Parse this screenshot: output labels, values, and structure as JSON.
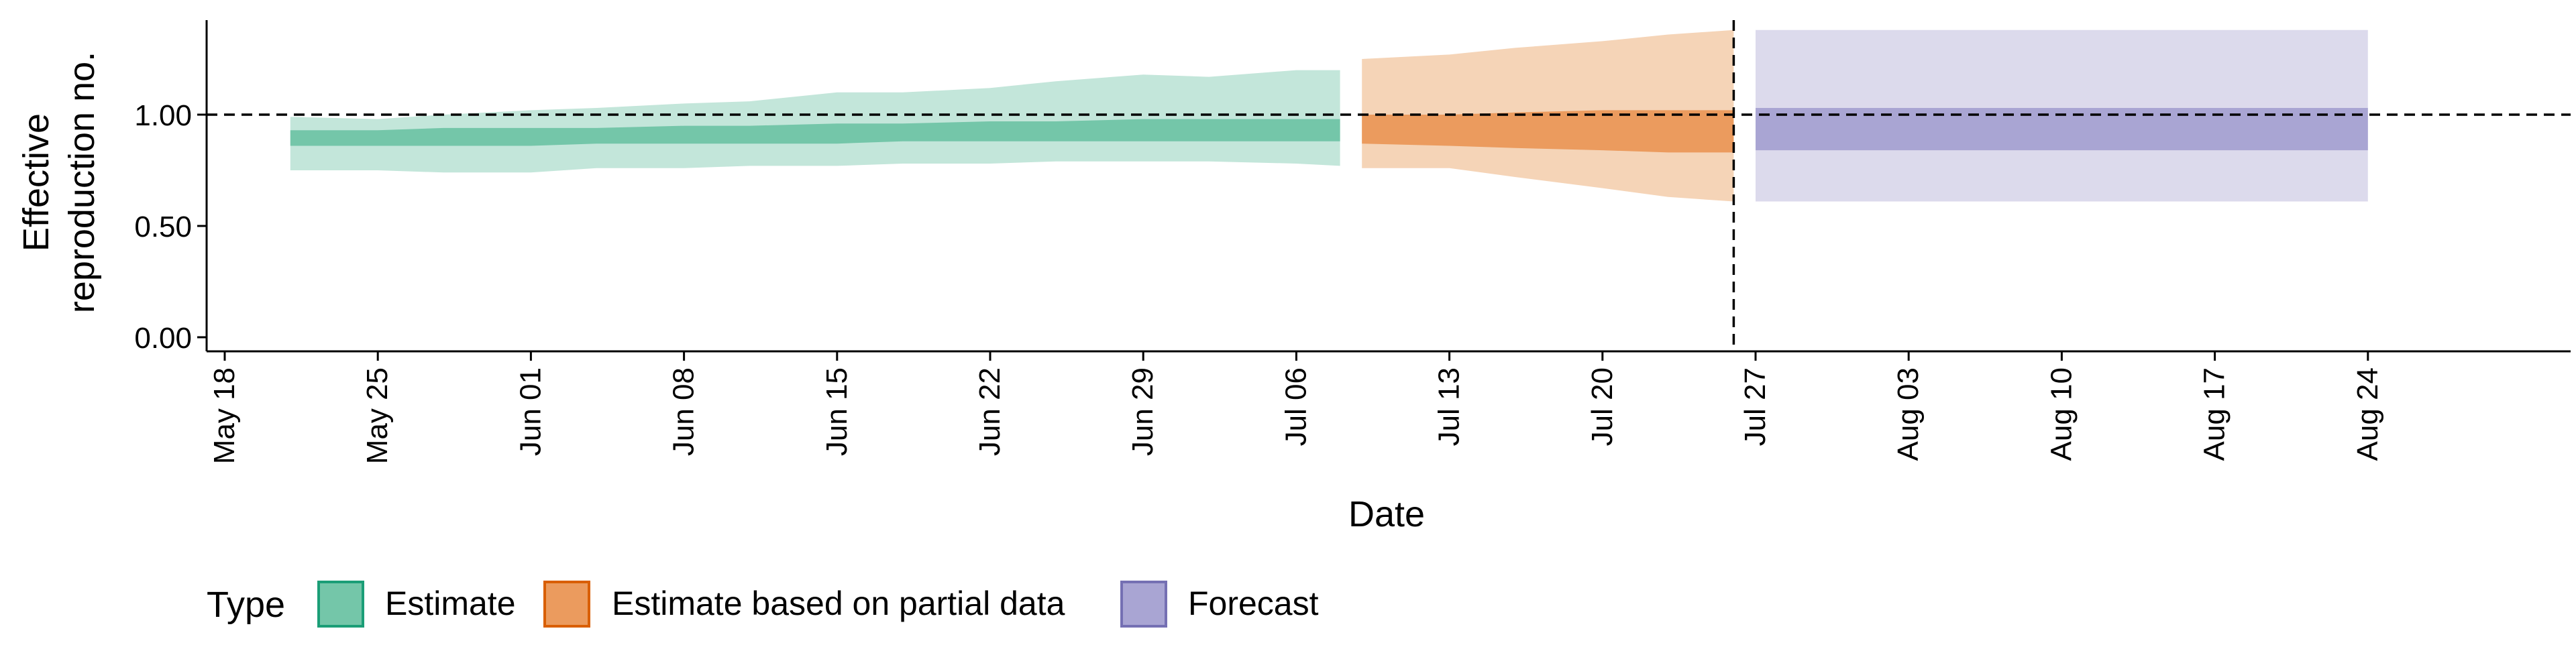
{
  "chart_data": {
    "type": "area",
    "xlabel": "Date",
    "ylabel": [
      "Effective",
      "reproduction no."
    ],
    "ylim": [
      0,
      1.45
    ],
    "yticks": [
      0.0,
      0.5,
      1.0
    ],
    "ytick_labels": [
      "0.00",
      "0.50",
      "1.00"
    ],
    "xticks": [
      "2020-05-18",
      "2020-05-25",
      "2020-06-01",
      "2020-06-08",
      "2020-06-15",
      "2020-06-22",
      "2020-06-29",
      "2020-07-06",
      "2020-07-13",
      "2020-07-20",
      "2020-07-27",
      "2020-08-03",
      "2020-08-10",
      "2020-08-17",
      "2020-08-24"
    ],
    "xtick_labels": [
      "May 18",
      "May 25",
      "Jun 01",
      "Jun 08",
      "Jun 15",
      "Jun 22",
      "Jun 29",
      "Jul 06",
      "Jul 13",
      "Jul 20",
      "Jul 27",
      "Aug 03",
      "Aug 10",
      "Aug 17",
      "Aug 24"
    ],
    "reference_hline": 1.0,
    "reference_vline": "2020-07-26",
    "legend": {
      "title": "Type",
      "position": "bottom",
      "entries": [
        {
          "label": "Estimate",
          "fill": "#74c6a9",
          "border": "#1b9e77"
        },
        {
          "label": "Estimate based on partial data",
          "fill": "#eb9b5e",
          "border": "#d95f02"
        },
        {
          "label": "Forecast",
          "fill": "#a9a5d3",
          "border": "#7570b3"
        }
      ]
    },
    "series": [
      {
        "name": "Estimate",
        "outer_color": "#c3e6da",
        "inner_color": "#74c6a9",
        "points": [
          {
            "date": "2020-05-21",
            "lower_90": 0.75,
            "lower_50": 0.86,
            "upper_50": 0.93,
            "upper_90": 0.99
          },
          {
            "date": "2020-05-25",
            "lower_90": 0.75,
            "lower_50": 0.86,
            "upper_50": 0.93,
            "upper_90": 0.98
          },
          {
            "date": "2020-05-28",
            "lower_90": 0.74,
            "lower_50": 0.86,
            "upper_50": 0.94,
            "upper_90": 1.0
          },
          {
            "date": "2020-06-01",
            "lower_90": 0.74,
            "lower_50": 0.86,
            "upper_50": 0.94,
            "upper_90": 1.02
          },
          {
            "date": "2020-06-04",
            "lower_90": 0.76,
            "lower_50": 0.87,
            "upper_50": 0.94,
            "upper_90": 1.03
          },
          {
            "date": "2020-06-08",
            "lower_90": 0.76,
            "lower_50": 0.87,
            "upper_50": 0.95,
            "upper_90": 1.05
          },
          {
            "date": "2020-06-11",
            "lower_90": 0.77,
            "lower_50": 0.87,
            "upper_50": 0.95,
            "upper_90": 1.06
          },
          {
            "date": "2020-06-15",
            "lower_90": 0.77,
            "lower_50": 0.87,
            "upper_50": 0.96,
            "upper_90": 1.1
          },
          {
            "date": "2020-06-18",
            "lower_90": 0.78,
            "lower_50": 0.88,
            "upper_50": 0.96,
            "upper_90": 1.1
          },
          {
            "date": "2020-06-22",
            "lower_90": 0.78,
            "lower_50": 0.88,
            "upper_50": 0.97,
            "upper_90": 1.12
          },
          {
            "date": "2020-06-25",
            "lower_90": 0.79,
            "lower_50": 0.88,
            "upper_50": 0.97,
            "upper_90": 1.15
          },
          {
            "date": "2020-06-29",
            "lower_90": 0.79,
            "lower_50": 0.88,
            "upper_50": 0.98,
            "upper_90": 1.18
          },
          {
            "date": "2020-07-02",
            "lower_90": 0.79,
            "lower_50": 0.88,
            "upper_50": 0.98,
            "upper_90": 1.17
          },
          {
            "date": "2020-07-06",
            "lower_90": 0.78,
            "lower_50": 0.88,
            "upper_50": 0.98,
            "upper_90": 1.2
          },
          {
            "date": "2020-07-08",
            "lower_90": 0.77,
            "lower_50": 0.88,
            "upper_50": 0.98,
            "upper_90": 1.2
          }
        ]
      },
      {
        "name": "Estimate based on partial data",
        "outer_color": "#f5d4b7",
        "inner_color": "#eb9b5e",
        "points": [
          {
            "date": "2020-07-09",
            "lower_90": 0.76,
            "lower_50": 0.87,
            "upper_50": 1.0,
            "upper_90": 1.25
          },
          {
            "date": "2020-07-13",
            "lower_90": 0.76,
            "lower_50": 0.86,
            "upper_50": 1.0,
            "upper_90": 1.27
          },
          {
            "date": "2020-07-16",
            "lower_90": 0.72,
            "lower_50": 0.85,
            "upper_50": 1.01,
            "upper_90": 1.3
          },
          {
            "date": "2020-07-20",
            "lower_90": 0.67,
            "lower_50": 0.84,
            "upper_50": 1.02,
            "upper_90": 1.33
          },
          {
            "date": "2020-07-23",
            "lower_90": 0.63,
            "lower_50": 0.83,
            "upper_50": 1.02,
            "upper_90": 1.36
          },
          {
            "date": "2020-07-26",
            "lower_90": 0.61,
            "lower_50": 0.83,
            "upper_50": 1.02,
            "upper_90": 1.38
          }
        ]
      },
      {
        "name": "Forecast",
        "outer_color": "#dcdaec",
        "inner_color": "#a9a5d3",
        "points": [
          {
            "date": "2020-07-27",
            "lower_90": 0.61,
            "lower_50": 0.84,
            "upper_50": 1.03,
            "upper_90": 1.38
          },
          {
            "date": "2020-08-24",
            "lower_90": 0.61,
            "lower_50": 0.84,
            "upper_50": 1.03,
            "upper_90": 1.38
          }
        ]
      }
    ]
  }
}
